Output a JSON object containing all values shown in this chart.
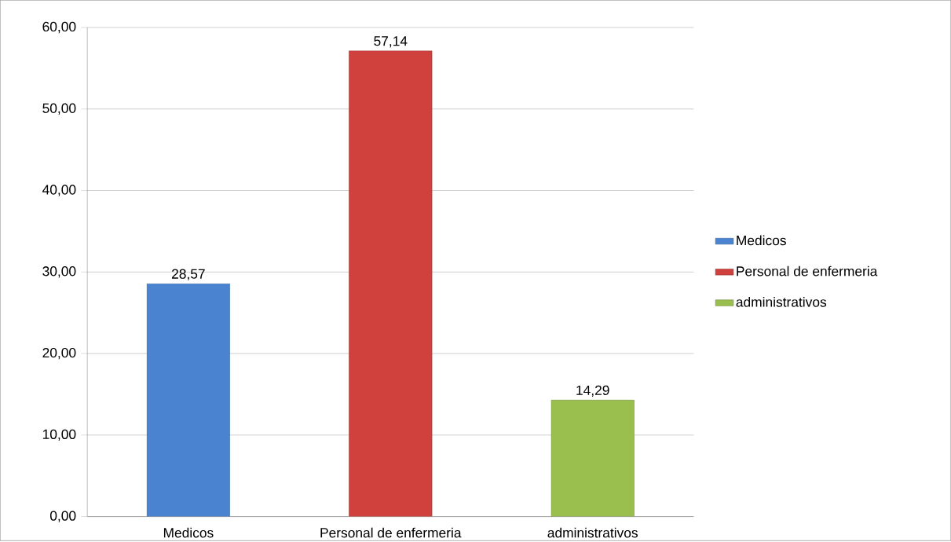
{
  "chart_data": {
    "type": "bar",
    "categories": [
      "Medicos",
      "Personal de enfermeria",
      "administrativos"
    ],
    "series": [
      {
        "name": "Medicos",
        "color": "#4a84d0",
        "values": [
          28.57,
          null,
          null
        ],
        "value_labels": [
          "28,57",
          null,
          null
        ]
      },
      {
        "name": "Personal de enfermeria",
        "color": "#d0413d",
        "values": [
          null,
          57.14,
          null
        ],
        "value_labels": [
          null,
          "57,14",
          null
        ]
      },
      {
        "name": "administrativos",
        "color": "#9bbf4f",
        "values": [
          null,
          null,
          14.29
        ],
        "value_labels": [
          null,
          null,
          "14,29"
        ]
      }
    ],
    "ylim": [
      0,
      60
    ],
    "yticks": [
      {
        "value": 0,
        "label": "0,00"
      },
      {
        "value": 10,
        "label": "10,00"
      },
      {
        "value": 20,
        "label": "20,00"
      },
      {
        "value": 30,
        "label": "30,00"
      },
      {
        "value": 40,
        "label": "40,00"
      },
      {
        "value": 50,
        "label": "50,00"
      },
      {
        "value": 60,
        "label": "60,00"
      }
    ],
    "grid": "y",
    "legend": "right"
  }
}
